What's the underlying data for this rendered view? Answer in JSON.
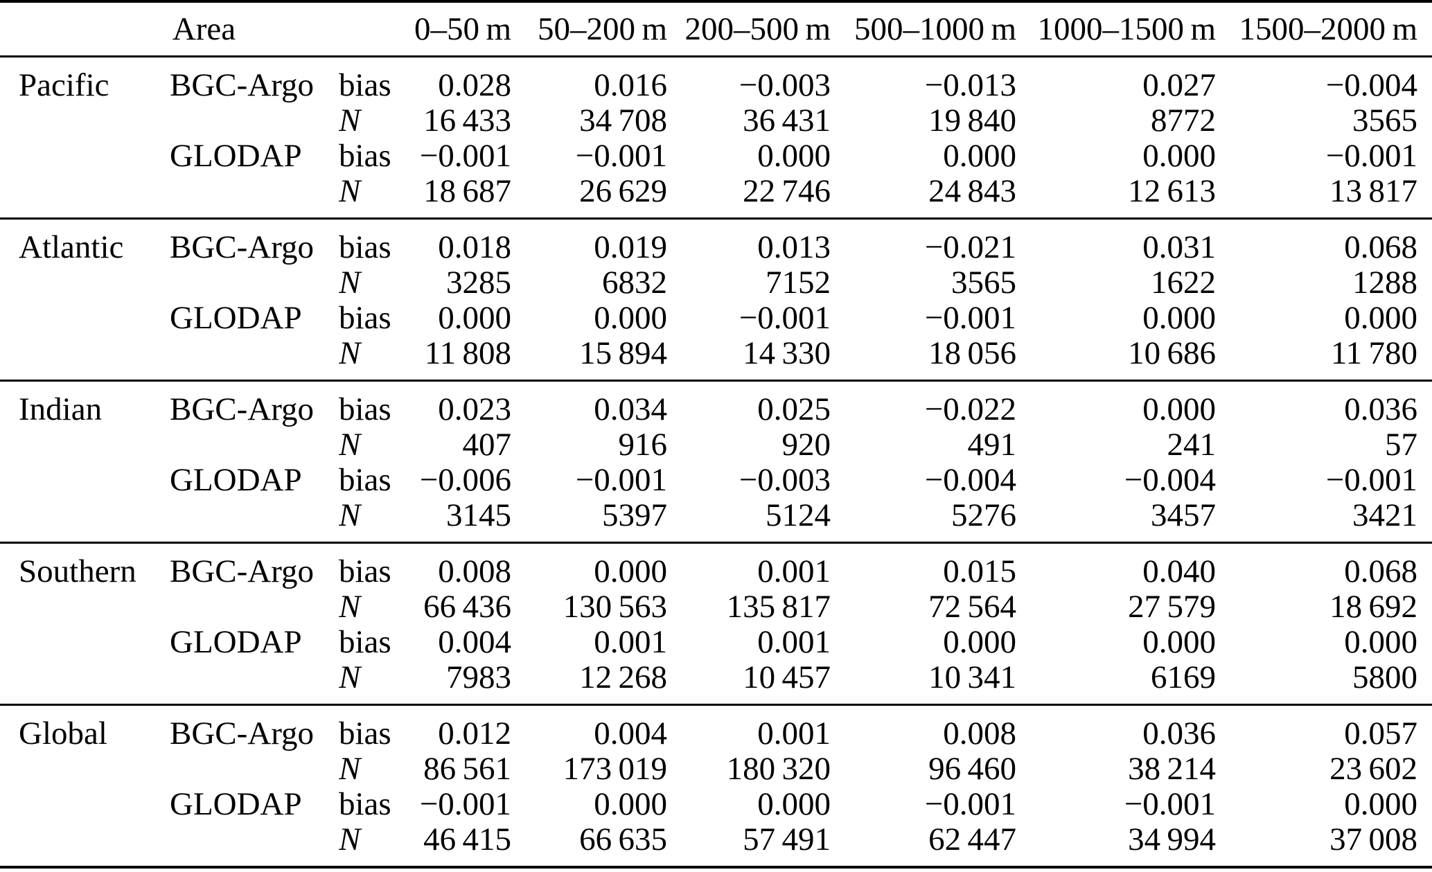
{
  "table": {
    "header": {
      "area_label": "Area",
      "depth_columns": [
        "0–50 m",
        "50–200 m",
        "200–500 m",
        "500–1000 m",
        "1000–1500 m",
        "1500–2000 m"
      ]
    },
    "metric_labels": {
      "bias": "bias",
      "n": "N"
    },
    "groups": [
      {
        "area": "Pacific",
        "datasets": [
          {
            "name": "BGC-Argo",
            "bias": [
              "0.028",
              "0.016",
              "−0.003",
              "−0.013",
              "0.027",
              "−0.004"
            ],
            "n": [
              "16 433",
              "34 708",
              "36 431",
              "19 840",
              "8772",
              "3565"
            ]
          },
          {
            "name": "GLODAP",
            "bias": [
              "−0.001",
              "−0.001",
              "0.000",
              "0.000",
              "0.000",
              "−0.001"
            ],
            "n": [
              "18 687",
              "26 629",
              "22 746",
              "24 843",
              "12 613",
              "13 817"
            ]
          }
        ]
      },
      {
        "area": "Atlantic",
        "datasets": [
          {
            "name": "BGC-Argo",
            "bias": [
              "0.018",
              "0.019",
              "0.013",
              "−0.021",
              "0.031",
              "0.068"
            ],
            "n": [
              "3285",
              "6832",
              "7152",
              "3565",
              "1622",
              "1288"
            ]
          },
          {
            "name": "GLODAP",
            "bias": [
              "0.000",
              "0.000",
              "−0.001",
              "−0.001",
              "0.000",
              "0.000"
            ],
            "n": [
              "11 808",
              "15 894",
              "14 330",
              "18 056",
              "10 686",
              "11 780"
            ]
          }
        ]
      },
      {
        "area": "Indian",
        "datasets": [
          {
            "name": "BGC-Argo",
            "bias": [
              "0.023",
              "0.034",
              "0.025",
              "−0.022",
              "0.000",
              "0.036"
            ],
            "n": [
              "407",
              "916",
              "920",
              "491",
              "241",
              "57"
            ]
          },
          {
            "name": "GLODAP",
            "bias": [
              "−0.006",
              "−0.001",
              "−0.003",
              "−0.004",
              "−0.004",
              "−0.001"
            ],
            "n": [
              "3145",
              "5397",
              "5124",
              "5276",
              "3457",
              "3421"
            ]
          }
        ]
      },
      {
        "area": "Southern",
        "datasets": [
          {
            "name": "BGC-Argo",
            "bias": [
              "0.008",
              "0.000",
              "0.001",
              "0.015",
              "0.040",
              "0.068"
            ],
            "n": [
              "66 436",
              "130 563",
              "135 817",
              "72 564",
              "27 579",
              "18 692"
            ]
          },
          {
            "name": "GLODAP",
            "bias": [
              "0.004",
              "0.001",
              "0.001",
              "0.000",
              "0.000",
              "0.000"
            ],
            "n": [
              "7983",
              "12 268",
              "10 457",
              "10 341",
              "6169",
              "5800"
            ]
          }
        ]
      },
      {
        "area": "Global",
        "datasets": [
          {
            "name": "BGC-Argo",
            "bias": [
              "0.012",
              "0.004",
              "0.001",
              "0.008",
              "0.036",
              "0.057"
            ],
            "n": [
              "86 561",
              "173 019",
              "180 320",
              "96 460",
              "38 214",
              "23 602"
            ]
          },
          {
            "name": "GLODAP",
            "bias": [
              "−0.001",
              "0.000",
              "0.000",
              "−0.001",
              "−0.001",
              "0.000"
            ],
            "n": [
              "46 415",
              "66 635",
              "57 491",
              "62 447",
              "34 994",
              "37 008"
            ]
          }
        ]
      }
    ]
  },
  "colors": {
    "text": "#000000",
    "rule": "#000000",
    "background": "#ffffff"
  }
}
